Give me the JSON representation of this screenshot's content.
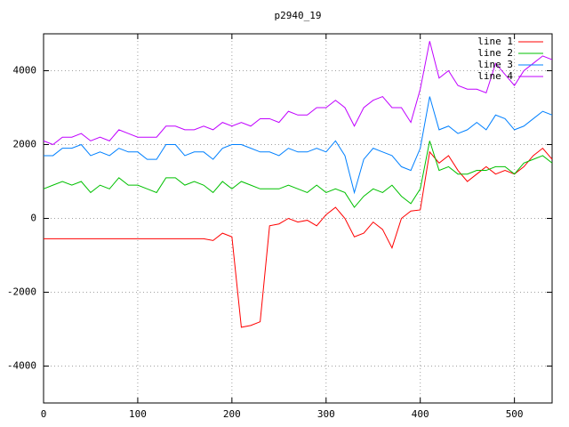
{
  "chart_data": {
    "type": "line",
    "title": "p2940_19",
    "x": [
      0,
      10,
      20,
      30,
      40,
      50,
      60,
      70,
      80,
      90,
      100,
      110,
      120,
      130,
      140,
      150,
      160,
      170,
      180,
      190,
      200,
      210,
      220,
      230,
      240,
      250,
      260,
      270,
      280,
      290,
      300,
      310,
      320,
      330,
      340,
      350,
      360,
      370,
      380,
      390,
      400,
      410,
      420,
      430,
      440,
      450,
      460,
      470,
      480,
      490,
      500,
      510,
      520,
      530,
      540
    ],
    "series": [
      {
        "name": "line 1",
        "color": "#ff0000",
        "values": [
          -550,
          -550,
          -550,
          -550,
          -550,
          -550,
          -550,
          -550,
          -550,
          -550,
          -550,
          -550,
          -550,
          -550,
          -550,
          -550,
          -550,
          -550,
          -600,
          -400,
          -500,
          -2950,
          -2900,
          -2800,
          -200,
          -150,
          0,
          -100,
          -50,
          -200,
          100,
          300,
          0,
          -500,
          -400,
          -100,
          -300,
          -800,
          0,
          200,
          230,
          1800,
          1500,
          1700,
          1300,
          1000,
          1200,
          1400,
          1200,
          1300,
          1200,
          1400,
          1700,
          1900,
          1600
        ]
      },
      {
        "name": "line 2",
        "color": "#00c000",
        "values": [
          800,
          900,
          1000,
          900,
          1000,
          700,
          900,
          800,
          1100,
          900,
          900,
          800,
          700,
          1100,
          1100,
          900,
          1000,
          900,
          700,
          1000,
          800,
          1000,
          900,
          800,
          800,
          800,
          900,
          800,
          700,
          900,
          700,
          800,
          700,
          300,
          600,
          800,
          700,
          900,
          600,
          400,
          800,
          2100,
          1300,
          1400,
          1200,
          1200,
          1300,
          1300,
          1400,
          1400,
          1200,
          1500,
          1600,
          1700,
          1500
        ]
      },
      {
        "name": "line 3",
        "color": "#0080ff",
        "values": [
          1700,
          1700,
          1900,
          1900,
          2000,
          1700,
          1800,
          1700,
          1900,
          1800,
          1800,
          1600,
          1600,
          2000,
          2000,
          1700,
          1800,
          1800,
          1600,
          1900,
          2000,
          2000,
          1900,
          1800,
          1800,
          1700,
          1900,
          1800,
          1800,
          1900,
          1800,
          2100,
          1700,
          700,
          1600,
          1900,
          1800,
          1700,
          1400,
          1300,
          1900,
          3300,
          2400,
          2500,
          2300,
          2400,
          2600,
          2400,
          2800,
          2700,
          2400,
          2500,
          2700,
          2900,
          2800
        ]
      },
      {
        "name": "line 4",
        "color": "#c000ff",
        "values": [
          2100,
          2000,
          2200,
          2200,
          2300,
          2100,
          2200,
          2100,
          2400,
          2300,
          2200,
          2200,
          2200,
          2500,
          2500,
          2400,
          2400,
          2500,
          2400,
          2600,
          2500,
          2600,
          2500,
          2700,
          2700,
          2600,
          2900,
          2800,
          2800,
          3000,
          3000,
          3200,
          3000,
          2500,
          3000,
          3200,
          3300,
          3000,
          3000,
          2600,
          3500,
          4800,
          3800,
          4000,
          3600,
          3500,
          3500,
          3400,
          4200,
          3900,
          3600,
          4000,
          4200,
          4400,
          4300
        ]
      }
    ],
    "xlim": [
      0,
      540
    ],
    "xticks": [
      0,
      100,
      200,
      300,
      400,
      500
    ],
    "ylim": [
      -5000,
      5000
    ],
    "yticks": [
      -4000,
      -2000,
      0,
      2000,
      4000
    ],
    "grid": true,
    "legend": "top-right"
  }
}
